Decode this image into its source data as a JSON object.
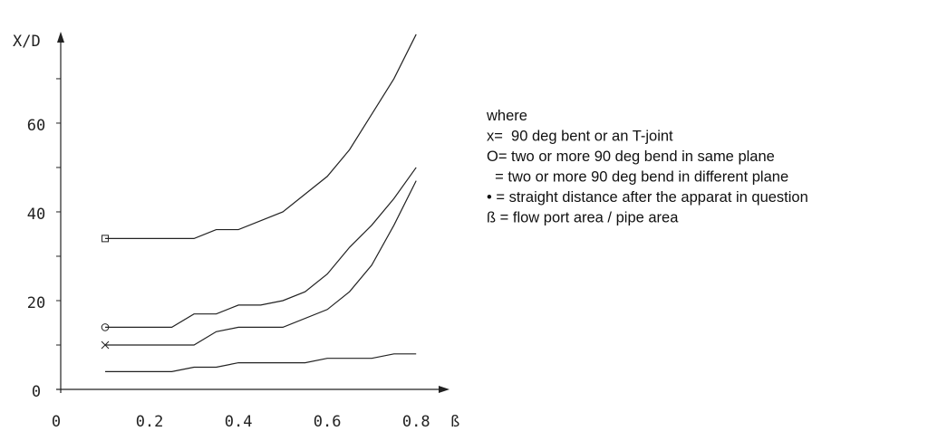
{
  "chart_data": {
    "type": "line",
    "ylabel": "X/D",
    "xlabel": "ß",
    "xlim": [
      0,
      0.873
    ],
    "ylim": [
      0,
      80.6
    ],
    "xticks": [
      0,
      0.2,
      0.4,
      0.6,
      0.8
    ],
    "yticks": [
      0,
      20,
      40,
      60
    ],
    "yminorticks": [
      10,
      30,
      50,
      70
    ],
    "series": [
      {
        "marker": "square",
        "color": "#222",
        "x": [
          0.1,
          0.3,
          0.35,
          0.4,
          0.5,
          0.6,
          0.65,
          0.7,
          0.75,
          0.8
        ],
        "values": [
          34,
          34,
          36,
          36,
          40,
          48,
          54,
          62,
          70,
          80
        ]
      },
      {
        "marker": "circle",
        "color": "#222",
        "x": [
          0.1,
          0.25,
          0.3,
          0.35,
          0.4,
          0.45,
          0.5,
          0.55,
          0.6,
          0.65,
          0.7,
          0.75,
          0.8
        ],
        "values": [
          14,
          14,
          17,
          17,
          19,
          19,
          20,
          22,
          26,
          32,
          37,
          43,
          50
        ]
      },
      {
        "marker": "cross",
        "color": "#222",
        "x": [
          0.1,
          0.3,
          0.35,
          0.4,
          0.5,
          0.6,
          0.65,
          0.7,
          0.75,
          0.8
        ],
        "values": [
          10,
          10,
          13,
          14,
          14,
          18,
          22,
          28,
          37,
          47
        ]
      },
      {
        "color": "#222",
        "x": [
          0.1,
          0.25,
          0.3,
          0.35,
          0.4,
          0.55,
          0.6,
          0.7,
          0.75,
          0.8
        ],
        "values": [
          4,
          4,
          5,
          5,
          6,
          6,
          7,
          7,
          8,
          8
        ]
      }
    ],
    "annotations": [
      "where",
      "x=  90 deg bent or an T-joint",
      "O= two or more 90 deg bend in same plane",
      "  = two or more 90 deg bend in different plane",
      "• = straight distance after the apparat in question",
      "ß = flow port area / pipe area"
    ]
  }
}
